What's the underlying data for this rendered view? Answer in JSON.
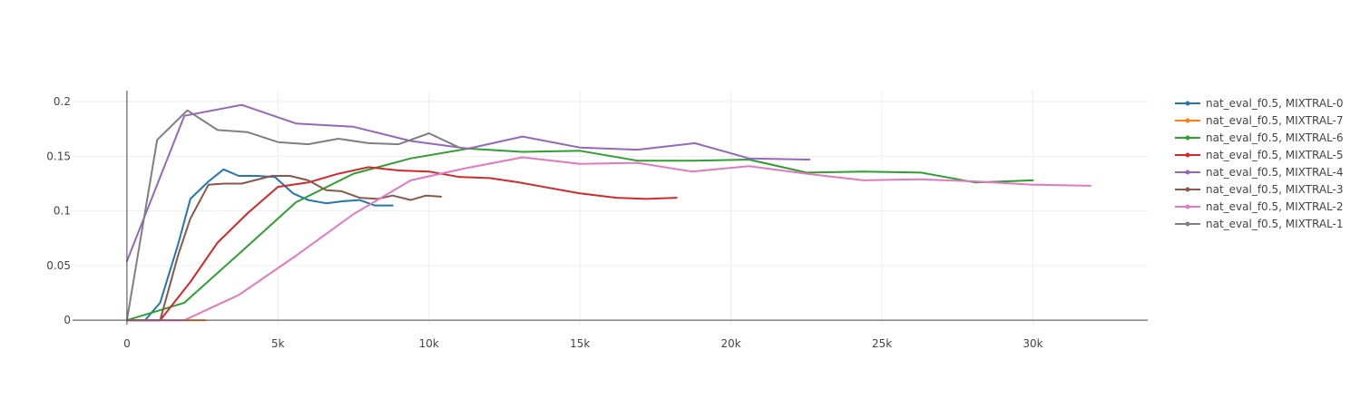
{
  "chart_data": {
    "type": "line",
    "title": "",
    "xlabel": "",
    "ylabel": "",
    "xlim": [
      -1800,
      33800
    ],
    "ylim": [
      -0.004,
      0.21
    ],
    "x_ticks": [
      {
        "value": 0,
        "label": "0"
      },
      {
        "value": 5000,
        "label": "5k"
      },
      {
        "value": 10000,
        "label": "10k"
      },
      {
        "value": 15000,
        "label": "15k"
      },
      {
        "value": 20000,
        "label": "20k"
      },
      {
        "value": 25000,
        "label": "25k"
      },
      {
        "value": 30000,
        "label": "30k"
      }
    ],
    "y_ticks": [
      {
        "value": 0,
        "label": "0"
      },
      {
        "value": 0.05,
        "label": "0.05"
      },
      {
        "value": 0.1,
        "label": "0.1"
      },
      {
        "value": 0.15,
        "label": "0.15"
      },
      {
        "value": 0.2,
        "label": "0.2"
      }
    ],
    "grid": true,
    "legend_position": "right",
    "series": [
      {
        "name": "nat_eval_f0.5, MIXTRAL-0",
        "color": "#1f77b4",
        "x": [
          0,
          600,
          1100,
          1700,
          2100,
          2700,
          3200,
          3700,
          4300,
          4900,
          5500,
          6000,
          6600,
          7200,
          7700,
          8200,
          8800
        ],
        "y": [
          0,
          0,
          0.016,
          0.07,
          0.111,
          0.127,
          0.138,
          0.132,
          0.132,
          0.131,
          0.116,
          0.11,
          0.107,
          0.109,
          0.11,
          0.105,
          0.105
        ]
      },
      {
        "name": "nat_eval_f0.5, MIXTRAL-7",
        "color": "#ff7f0e",
        "x": [
          0,
          1000,
          2000,
          2600
        ],
        "y": [
          0,
          0,
          0,
          0
        ]
      },
      {
        "name": "nat_eval_f0.5, MIXTRAL-6",
        "color": "#2ca02c",
        "x": [
          0,
          1900,
          3800,
          5600,
          7500,
          9400,
          11300,
          13100,
          15000,
          16900,
          18800,
          20600,
          22500,
          24400,
          26300,
          28100,
          30000
        ],
        "y": [
          0,
          0.016,
          0.063,
          0.108,
          0.134,
          0.148,
          0.157,
          0.154,
          0.155,
          0.146,
          0.146,
          0.147,
          0.135,
          0.136,
          0.135,
          0.126,
          0.128
        ]
      },
      {
        "name": "nat_eval_f0.5, MIXTRAL-5",
        "color": "#d62728",
        "x": [
          0,
          1100,
          2100,
          3000,
          4000,
          5000,
          6000,
          7000,
          8000,
          9000,
          10000,
          11000,
          12000,
          13000,
          15000,
          16200,
          17200,
          18200
        ],
        "y": [
          0,
          0,
          0.035,
          0.071,
          0.098,
          0.122,
          0.126,
          0.134,
          0.14,
          0.137,
          0.136,
          0.131,
          0.13,
          0.126,
          0.116,
          0.112,
          0.111,
          0.112
        ]
      },
      {
        "name": "nat_eval_f0.5, MIXTRAL-4",
        "color": "#9467bd",
        "x": [
          0,
          1900,
          3800,
          5600,
          7500,
          9400,
          11300,
          13100,
          15000,
          16900,
          18800,
          20600,
          22600
        ],
        "y": [
          0.054,
          0.187,
          0.197,
          0.18,
          0.177,
          0.164,
          0.157,
          0.168,
          0.158,
          0.156,
          0.162,
          0.148,
          0.147
        ]
      },
      {
        "name": "nat_eval_f0.5, MIXTRAL-3",
        "color": "#8c564b",
        "x": [
          0,
          1100,
          1700,
          2100,
          2700,
          3200,
          3800,
          4800,
          5400,
          6000,
          6600,
          7100,
          7700,
          8300,
          8800,
          9400,
          9900,
          10400
        ],
        "y": [
          0,
          0,
          0.06,
          0.093,
          0.124,
          0.125,
          0.125,
          0.132,
          0.132,
          0.128,
          0.119,
          0.118,
          0.112,
          0.111,
          0.114,
          0.11,
          0.114,
          0.113
        ]
      },
      {
        "name": "nat_eval_f0.5, MIXTRAL-2",
        "color": "#e377c2",
        "x": [
          0,
          1900,
          3700,
          5600,
          7500,
          9400,
          11200,
          13100,
          15000,
          16900,
          18700,
          20600,
          22500,
          24400,
          26200,
          28100,
          30000,
          31900
        ],
        "y": [
          0,
          0,
          0.023,
          0.059,
          0.097,
          0.128,
          0.139,
          0.149,
          0.143,
          0.144,
          0.136,
          0.141,
          0.134,
          0.128,
          0.129,
          0.127,
          0.124,
          0.123
        ]
      },
      {
        "name": "nat_eval_f0.5, MIXTRAL-1",
        "color": "#7f7f7f",
        "x": [
          0,
          1000,
          2000,
          3000,
          4000,
          5000,
          6000,
          7000,
          8000,
          9000,
          10000,
          11000
        ],
        "y": [
          0,
          0.165,
          0.192,
          0.174,
          0.172,
          0.163,
          0.161,
          0.166,
          0.162,
          0.161,
          0.171,
          0.158
        ]
      }
    ]
  }
}
